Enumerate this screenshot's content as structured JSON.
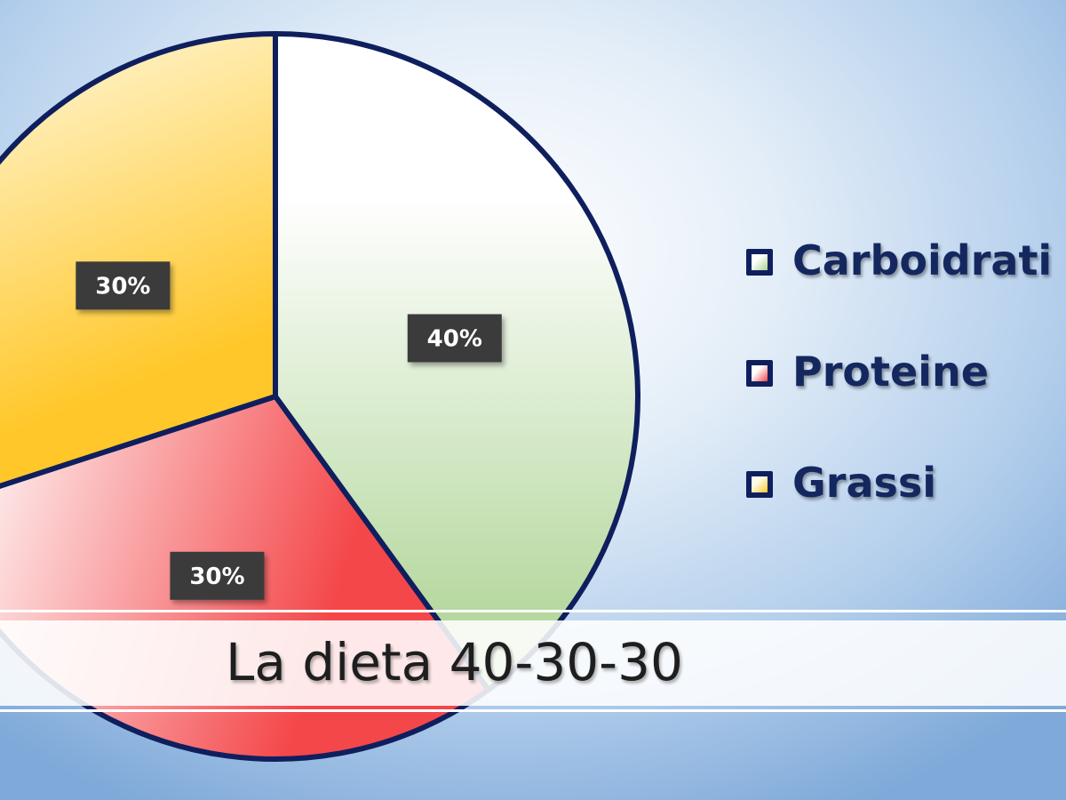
{
  "slide": {
    "title": "La dieta 40-30-30"
  },
  "chart_data": {
    "type": "pie",
    "title": "",
    "categories": [
      "Carboidrati",
      "Proteine",
      "Grassi"
    ],
    "values": [
      40,
      30,
      30
    ],
    "data_labels": [
      "40%",
      "30%",
      "30%"
    ],
    "legend_position": "right",
    "colors": {
      "Carboidrati": {
        "light": "#ffffff",
        "dark": "#a9d18e"
      },
      "Proteine": {
        "light": "#ffffff",
        "dark": "#f4474a"
      },
      "Grassi": {
        "light": "#fffbe8",
        "dark": "#ffc729"
      },
      "outline": "#0f1f5e",
      "label_box": "#3a3a3a"
    }
  }
}
